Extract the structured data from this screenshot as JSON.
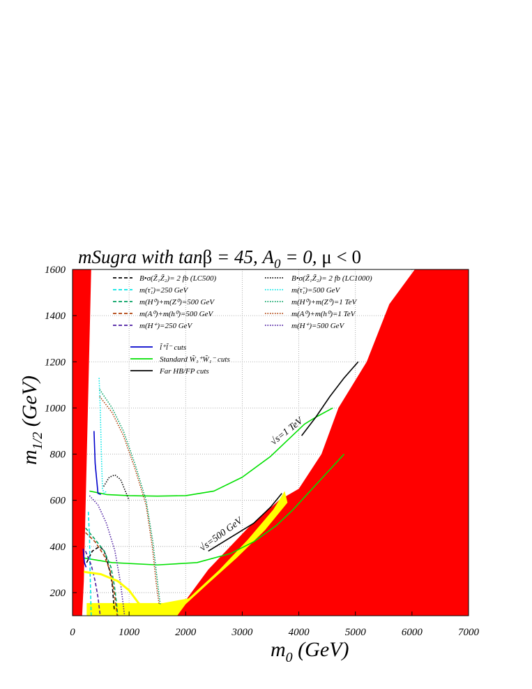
{
  "chart_data": {
    "type": "line",
    "title": "mSugra with tanβ = 45, A₀ = 0, μ < 0",
    "title_parts": {
      "pre": "mSugra with tan",
      "beta": "β",
      "mid": " = 45, A",
      "sub0": "0",
      "post": " = 0, ",
      "mu": "μ",
      "tail": " < 0"
    },
    "xlabel": "m₀ (GeV)",
    "xlabel_parts": {
      "main": "m",
      "sub": "0",
      "unit": " (GeV)"
    },
    "ylabel": "m₁/₂ (GeV)",
    "ylabel_parts": {
      "main": "m",
      "sub": "1/2",
      "unit": " (GeV)"
    },
    "xlim": [
      0,
      7000
    ],
    "ylim": [
      100,
      1600
    ],
    "xticks": [
      0,
      1000,
      2000,
      3000,
      4000,
      5000,
      6000,
      7000
    ],
    "yticks": [
      200,
      400,
      600,
      800,
      1000,
      1200,
      1400,
      1600
    ],
    "grid": true,
    "legend_position": "top",
    "legend": [
      {
        "label": "B•σ(Z̃₁Z̃₂)= 2 fb (LC500)",
        "color": "#000000",
        "style": "dashed"
      },
      {
        "label": "m(τ̃₁)=250 GeV",
        "color": "#00e5e5",
        "style": "dashed"
      },
      {
        "label": "m(H⁰)+m(Z⁰)=500 GeV",
        "color": "#00a060",
        "style": "dashed"
      },
      {
        "label": "m(A⁰)+m(h⁰)=500 GeV",
        "color": "#b0400a",
        "style": "dashed"
      },
      {
        "label": "m(H⁺)=250 GeV",
        "color": "#4a1aa0",
        "style": "dashed"
      },
      {
        "label": "B•σ(Z̃₁Z̃₂)= 2 fb (LC1000)",
        "color": "#000000",
        "style": "dotted"
      },
      {
        "label": "m(τ̃₁)=500 GeV",
        "color": "#00e5e5",
        "style": "dotted"
      },
      {
        "label": "m(H⁰)+m(Z⁰)=1 TeV",
        "color": "#00a060",
        "style": "dotted"
      },
      {
        "label": "m(A⁰)+m(h⁰)=1 TeV",
        "color": "#b0400a",
        "style": "dotted"
      },
      {
        "label": "m(H⁺)=500 GeV",
        "color": "#4a1aa0",
        "style": "dotted"
      },
      {
        "label": "l̃⁺l̃⁻ cuts",
        "color": "#0000cc",
        "style": "solid"
      },
      {
        "label": "Standard W̃₁⁺W̃₁⁻ cuts",
        "color": "#00e000",
        "style": "solid"
      },
      {
        "label": "Far HB/FP cuts",
        "color": "#000000",
        "style": "solid"
      }
    ],
    "annotations": [
      "√s=1 TeV",
      "√s=500 GeV"
    ],
    "regions": [
      {
        "name": "excluded-left",
        "color": "#ff0000",
        "points": [
          [
            0,
            100
          ],
          [
            0,
            1600
          ],
          [
            330,
            1600
          ],
          [
            200,
            250
          ],
          [
            170,
            100
          ]
        ]
      },
      {
        "name": "excluded-right",
        "color": "#ff0000",
        "points": [
          [
            7000,
            100
          ],
          [
            7000,
            1600
          ],
          [
            6050,
            1600
          ],
          [
            5600,
            1450
          ],
          [
            5200,
            1200
          ],
          [
            4700,
            1000
          ],
          [
            4400,
            800
          ],
          [
            4000,
            650
          ],
          [
            3650,
            600
          ],
          [
            3100,
            480
          ],
          [
            2400,
            300
          ],
          [
            1950,
            150
          ],
          [
            1800,
            100
          ]
        ]
      },
      {
        "name": "yellow-band",
        "color": "#ffff00",
        "points": [
          [
            250,
            100
          ],
          [
            250,
            155
          ],
          [
            1600,
            155
          ],
          [
            2050,
            175
          ],
          [
            2600,
            300
          ],
          [
            3100,
            430
          ],
          [
            3550,
            560
          ],
          [
            3750,
            640
          ],
          [
            3800,
            590
          ],
          [
            3400,
            470
          ],
          [
            2900,
            350
          ],
          [
            2400,
            240
          ],
          [
            2000,
            150
          ],
          [
            1850,
            100
          ]
        ]
      }
    ],
    "series": [
      {
        "name": "Standard W̃₁⁺W̃₁⁻ cuts",
        "color": "#00e000",
        "style": "solid",
        "x": [
          200,
          700,
          1500,
          2200,
          2800,
          3200,
          3600,
          3900,
          4200,
          4500,
          4800
        ],
        "y": [
          350,
          330,
          320,
          330,
          370,
          420,
          490,
          560,
          640,
          720,
          800
        ]
      },
      {
        "name": "Standard W̃₁⁺W̃₁⁻ cuts",
        "color": "#00e000",
        "style": "solid",
        "x": [
          300,
          600,
          1000,
          1500,
          2000,
          2500,
          3000,
          3500,
          3800,
          4100,
          4300,
          4600
        ],
        "y": [
          640,
          625,
          620,
          618,
          620,
          640,
          700,
          790,
          860,
          930,
          960,
          1000
        ]
      },
      {
        "name": "Far HB/FP cuts",
        "color": "#000000",
        "style": "solid",
        "x": [
          2400,
          2800,
          3200,
          3500,
          3700
        ],
        "y": [
          380,
          440,
          500,
          570,
          630
        ]
      },
      {
        "name": "Far HB/FP cuts",
        "color": "#000000",
        "style": "solid",
        "x": [
          4050,
          4300,
          4550,
          4800,
          5050
        ],
        "y": [
          880,
          960,
          1050,
          1130,
          1200
        ]
      },
      {
        "name": "l̃⁺l̃⁻ cuts",
        "color": "#0000cc",
        "style": "solid",
        "x": [
          380,
          400,
          450,
          500
        ],
        "y": [
          900,
          760,
          630,
          625
        ]
      },
      {
        "name": "l̃⁺l̃⁻ cuts",
        "color": "#0000cc",
        "style": "solid",
        "x": [
          190,
          210,
          240
        ],
        "y": [
          390,
          330,
          310
        ]
      },
      {
        "name": "B•σ(Z̃₁Z̃₂)= 2 fb (LC500)",
        "color": "#000000",
        "style": "dashed",
        "x": [
          250,
          350,
          480,
          560,
          600,
          650,
          700,
          720,
          740
        ],
        "y": [
          330,
          380,
          400,
          380,
          350,
          300,
          240,
          180,
          120
        ]
      },
      {
        "name": "B•σ(Z̃₁Z̃₂)= 2 fb (LC1000)",
        "color": "#000000",
        "style": "dotted",
        "x": [
          550,
          650,
          750,
          850,
          950,
          1000
        ],
        "y": [
          660,
          700,
          710,
          690,
          630,
          600
        ]
      },
      {
        "name": "m(τ̃₁)=250 GeV",
        "color": "#00e5e5",
        "style": "dashed",
        "x": [
          280,
          300,
          310,
          330
        ],
        "y": [
          550,
          440,
          300,
          100
        ]
      },
      {
        "name": "m(τ̃₁)=500 GeV",
        "color": "#00e5e5",
        "style": "dotted",
        "x": [
          470,
          490,
          510,
          530,
          560,
          600
        ],
        "y": [
          1130,
          1000,
          800,
          650,
          630,
          640
        ]
      },
      {
        "name": "m(H⁰)+m(Z⁰)=500 GeV",
        "color": "#00a060",
        "style": "dashed",
        "x": [
          230,
          400,
          560,
          680,
          740,
          780,
          800
        ],
        "y": [
          480,
          430,
          380,
          310,
          230,
          150,
          100
        ]
      },
      {
        "name": "m(H⁰)+m(Z⁰)=1 TeV",
        "color": "#00a060",
        "style": "dotted",
        "x": [
          480,
          700,
          900,
          1100,
          1300,
          1420,
          1500,
          1550
        ],
        "y": [
          1080,
          1000,
          900,
          760,
          600,
          420,
          250,
          150
        ]
      },
      {
        "name": "m(A⁰)+m(h⁰)=500 GeV",
        "color": "#b0400a",
        "style": "dashed",
        "x": [
          230,
          400,
          560,
          670,
          730,
          770,
          790
        ],
        "y": [
          460,
          420,
          360,
          290,
          210,
          140,
          100
        ]
      },
      {
        "name": "m(A⁰)+m(h⁰)=1 TeV",
        "color": "#b0400a",
        "style": "dotted",
        "x": [
          480,
          700,
          900,
          1100,
          1300,
          1410,
          1480,
          1530
        ],
        "y": [
          1050,
          980,
          880,
          740,
          580,
          400,
          240,
          150
        ]
      },
      {
        "name": "m(H⁺)=250 GeV",
        "color": "#4a1aa0",
        "style": "dashed",
        "x": [
          230,
          330,
          400,
          450,
          480,
          490
        ],
        "y": [
          380,
          320,
          250,
          180,
          120,
          100
        ]
      },
      {
        "name": "m(H⁺)=500 GeV",
        "color": "#4a1aa0",
        "style": "dotted",
        "x": [
          300,
          450,
          600,
          750,
          850,
          900,
          920
        ],
        "y": [
          620,
          580,
          500,
          380,
          240,
          140,
          100
        ]
      },
      {
        "name": "yellow-edge",
        "color": "#ffff00",
        "style": "solid",
        "width": 3,
        "x": [
          200,
          500,
          800,
          1000,
          1150,
          1250
        ],
        "y": [
          290,
          280,
          250,
          210,
          160,
          130
        ]
      }
    ]
  }
}
